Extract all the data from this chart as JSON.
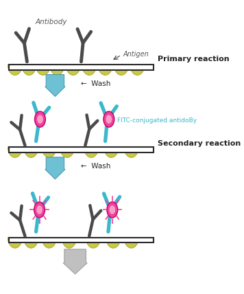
{
  "bg_color": "#ffffff",
  "slide_color": "#ffffff",
  "slide_border": "#2a2a2a",
  "antigen_color": "#c8c84a",
  "antigen_border": "#aaa820",
  "antibody_color": "#4a4a4a",
  "secondary_ab_color": "#3ab8cc",
  "fluorophore_color": "#f040a0",
  "fluorophore_inner": "#f8a0c8",
  "fluorophore_border": "#c00060",
  "arrow_fill": "#6ec0d4",
  "arrow_border": "#4a9ab0",
  "final_arrow_fill": "#c0c0c0",
  "final_arrow_border": "#a0a0a0",
  "wash_text_color": "#222222",
  "primary_label_color": "#222222",
  "secondary_label_color": "#222222",
  "fitc_label_color": "#3ab8cc",
  "antibody_label_color": "#555555",
  "antigen_label_color": "#555555",
  "label_primary": "Primary reaction",
  "label_secondary": "Secondary reaction",
  "label_wash": "←  Wash",
  "label_antibody": "Antibody",
  "label_antigen": "Antigen",
  "label_fitc": "FITC-conjugated antidoBy",
  "figw": 3.56,
  "figh": 4.28,
  "dpi": 100
}
